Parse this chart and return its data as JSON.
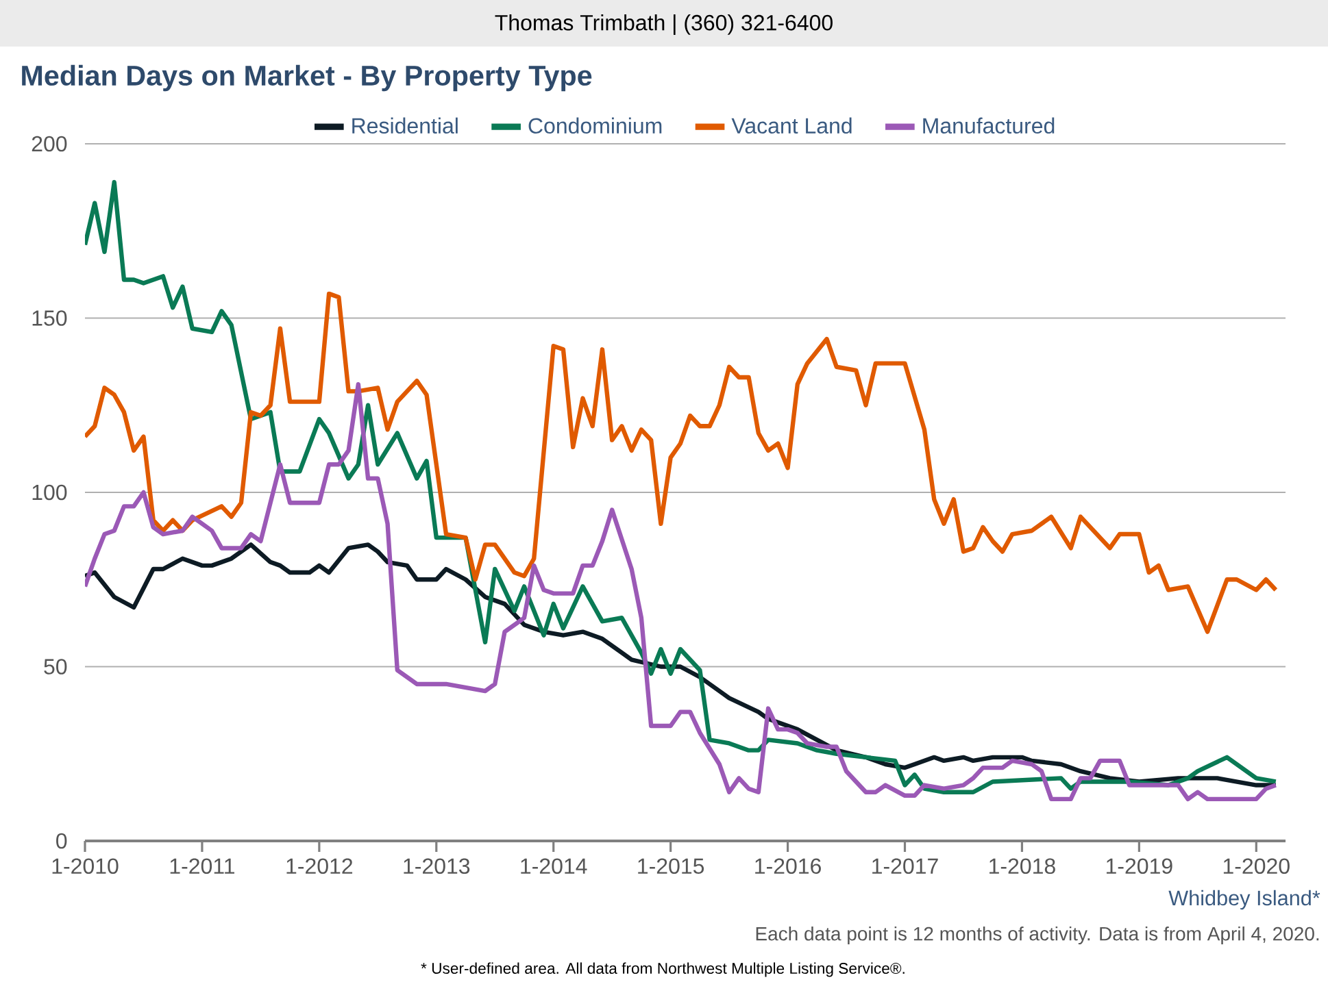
{
  "chart_data": {
    "type": "line",
    "title": "Median Days on Market - By Property Type",
    "annotations": [
      "Thomas Trimbath | (360) 321-6400",
      "Whidbey Island*",
      "Each data point is 12 months of activity. Data is from April 4, 2020.",
      "* User-defined area. All data from Northwest Multiple Listing Service®."
    ],
    "xlim": [
      "2010-01",
      "2020-04"
    ],
    "xticks": [
      {
        "value": "2010-01",
        "label": "1-2010"
      },
      {
        "value": "2011-01",
        "label": "1-2011"
      },
      {
        "value": "2012-01",
        "label": "1-2012"
      },
      {
        "value": "2013-01",
        "label": "1-2013"
      },
      {
        "value": "2014-01",
        "label": "1-2014"
      },
      {
        "value": "2015-01",
        "label": "1-2015"
      },
      {
        "value": "2016-01",
        "label": "1-2016"
      },
      {
        "value": "2017-01",
        "label": "1-2017"
      },
      {
        "value": "2018-01",
        "label": "1-2018"
      },
      {
        "value": "2019-01",
        "label": "1-2019"
      },
      {
        "value": "2020-01",
        "label": "1-2020"
      }
    ],
    "ylim": [
      0,
      200
    ],
    "yticks": [
      0,
      50,
      100,
      150,
      200
    ],
    "grid": "y",
    "legend": "top",
    "marker": "none",
    "line_style": "solid",
    "series": [
      {
        "name": "Residential",
        "color": "#0d1b24",
        "x": [
          "2010-01",
          "2010-02",
          "2010-04",
          "2010-06",
          "2010-08",
          "2010-09",
          "2010-11",
          "2011-01",
          "2011-02",
          "2011-04",
          "2011-06",
          "2011-08",
          "2011-09",
          "2011-10",
          "2011-12",
          "2012-01",
          "2012-02",
          "2012-04",
          "2012-06",
          "2012-07",
          "2012-08",
          "2012-10",
          "2012-11",
          "2013-01",
          "2013-02",
          "2013-04",
          "2013-06",
          "2013-08",
          "2013-10",
          "2013-12",
          "2014-02",
          "2014-04",
          "2014-06",
          "2014-08",
          "2014-09",
          "2014-12",
          "2015-02",
          "2015-04",
          "2015-07",
          "2015-10",
          "2015-11",
          "2016-02",
          "2016-04",
          "2016-06",
          "2016-09",
          "2016-11",
          "2017-01",
          "2017-02",
          "2017-04",
          "2017-05",
          "2017-07",
          "2017-08",
          "2017-10",
          "2018-01",
          "2018-02",
          "2018-05",
          "2018-07",
          "2018-10",
          "2019-01",
          "2019-05",
          "2019-09",
          "2020-01",
          "2020-03"
        ],
        "values": [
          76,
          77,
          70,
          67,
          78,
          78,
          81,
          79,
          79,
          81,
          85,
          80,
          79,
          77,
          77,
          79,
          77,
          84,
          85,
          83,
          80,
          79,
          75,
          75,
          78,
          75,
          70,
          68,
          62,
          60,
          59,
          60,
          58,
          54,
          52,
          50,
          50,
          47,
          41,
          37,
          35,
          32,
          29,
          26,
          24,
          22,
          21,
          22,
          24,
          23,
          24,
          23,
          24,
          24,
          23,
          22,
          20,
          18,
          17,
          18,
          18,
          16,
          16
        ]
      },
      {
        "name": "Condominium",
        "color": "#0a7a55",
        "x": [
          "2010-01",
          "2010-02",
          "2010-03",
          "2010-04",
          "2010-05",
          "2010-06",
          "2010-07",
          "2010-09",
          "2010-10",
          "2010-11",
          "2010-12",
          "2011-02",
          "2011-03",
          "2011-04",
          "2011-06",
          "2011-07",
          "2011-08",
          "2011-09",
          "2011-11",
          "2012-01",
          "2012-02",
          "2012-04",
          "2012-05",
          "2012-06",
          "2012-07",
          "2012-09",
          "2012-11",
          "2012-12",
          "2013-01",
          "2013-04",
          "2013-05",
          "2013-06",
          "2013-07",
          "2013-09",
          "2013-10",
          "2013-12",
          "2014-01",
          "2014-02",
          "2014-04",
          "2014-06",
          "2014-08",
          "2014-10",
          "2014-11",
          "2014-12",
          "2015-01",
          "2015-02",
          "2015-04",
          "2015-05",
          "2015-07",
          "2015-09",
          "2015-10",
          "2015-11",
          "2016-02",
          "2016-04",
          "2016-06",
          "2016-09",
          "2016-12",
          "2017-01",
          "2017-02",
          "2017-03",
          "2017-05",
          "2017-08",
          "2017-10",
          "2018-05",
          "2018-06",
          "2018-07",
          "2018-12",
          "2019-04",
          "2019-06",
          "2019-07",
          "2019-10",
          "2020-01",
          "2020-03"
        ],
        "values": [
          171,
          183,
          169,
          189,
          161,
          161,
          160,
          162,
          153,
          159,
          147,
          146,
          152,
          148,
          121,
          122,
          123,
          106,
          106,
          121,
          117,
          104,
          108,
          125,
          108,
          117,
          104,
          109,
          87,
          87,
          72,
          57,
          78,
          66,
          73,
          59,
          68,
          61,
          73,
          63,
          64,
          54,
          48,
          55,
          48,
          55,
          49,
          29,
          28,
          26,
          26,
          29,
          28,
          26,
          25,
          24,
          23,
          16,
          19,
          15,
          14,
          14,
          17,
          18,
          15,
          17,
          17,
          16,
          18,
          20,
          24,
          18,
          17
        ]
      },
      {
        "name": "Vacant Land",
        "color": "#e05a00",
        "x": [
          "2010-01",
          "2010-02",
          "2010-03",
          "2010-04",
          "2010-05",
          "2010-06",
          "2010-07",
          "2010-08",
          "2010-09",
          "2010-10",
          "2010-11",
          "2010-12",
          "2011-03",
          "2011-04",
          "2011-05",
          "2011-06",
          "2011-07",
          "2011-08",
          "2011-09",
          "2011-10",
          "2011-11",
          "2011-12",
          "2012-01",
          "2012-02",
          "2012-03",
          "2012-04",
          "2012-05",
          "2012-07",
          "2012-08",
          "2012-09",
          "2012-11",
          "2012-12",
          "2013-02",
          "2013-04",
          "2013-05",
          "2013-06",
          "2013-07",
          "2013-09",
          "2013-10",
          "2013-11",
          "2014-01",
          "2014-02",
          "2014-03",
          "2014-04",
          "2014-05",
          "2014-06",
          "2014-07",
          "2014-08",
          "2014-09",
          "2014-10",
          "2014-11",
          "2014-12",
          "2015-01",
          "2015-02",
          "2015-03",
          "2015-04",
          "2015-05",
          "2015-06",
          "2015-07",
          "2015-08",
          "2015-09",
          "2015-10",
          "2015-11",
          "2015-12",
          "2016-01",
          "2016-02",
          "2016-03",
          "2016-05",
          "2016-06",
          "2016-08",
          "2016-09",
          "2016-10",
          "2017-01",
          "2017-03",
          "2017-04",
          "2017-05",
          "2017-06",
          "2017-07",
          "2017-08",
          "2017-09",
          "2017-10",
          "2017-11",
          "2017-12",
          "2018-02",
          "2018-04",
          "2018-06",
          "2018-07",
          "2018-10",
          "2018-11",
          "2019-01",
          "2019-02",
          "2019-03",
          "2019-04",
          "2019-06",
          "2019-08",
          "2019-10",
          "2019-11",
          "2020-01",
          "2020-02",
          "2020-03"
        ],
        "values": [
          116,
          119,
          130,
          128,
          123,
          112,
          116,
          92,
          89,
          92,
          89,
          92,
          96,
          93,
          97,
          123,
          122,
          125,
          147,
          126,
          126,
          126,
          126,
          157,
          156,
          129,
          129,
          130,
          118,
          126,
          132,
          128,
          88,
          87,
          75,
          85,
          85,
          77,
          76,
          81,
          142,
          141,
          113,
          127,
          119,
          141,
          115,
          119,
          112,
          118,
          115,
          91,
          110,
          114,
          122,
          119,
          119,
          125,
          136,
          133,
          133,
          117,
          112,
          114,
          107,
          131,
          137,
          144,
          136,
          135,
          125,
          137,
          137,
          118,
          98,
          91,
          98,
          83,
          84,
          90,
          86,
          83,
          88,
          89,
          93,
          84,
          93,
          84,
          88,
          88,
          77,
          79,
          72,
          73,
          60,
          75,
          75,
          72,
          75,
          72
        ]
      },
      {
        "name": "Manufactured",
        "color": "#9b59b6",
        "x": [
          "2010-01",
          "2010-02",
          "2010-03",
          "2010-04",
          "2010-05",
          "2010-06",
          "2010-07",
          "2010-08",
          "2010-09",
          "2010-11",
          "2010-12",
          "2011-02",
          "2011-03",
          "2011-05",
          "2011-06",
          "2011-07",
          "2011-08",
          "2011-09",
          "2011-10",
          "2012-01",
          "2012-02",
          "2012-03",
          "2012-04",
          "2012-05",
          "2012-06",
          "2012-07",
          "2012-08",
          "2012-09",
          "2012-11",
          "2013-02",
          "2013-04",
          "2013-06",
          "2013-07",
          "2013-08",
          "2013-10",
          "2013-11",
          "2013-12",
          "2014-01",
          "2014-03",
          "2014-04",
          "2014-05",
          "2014-06",
          "2014-07",
          "2014-09",
          "2014-10",
          "2014-11",
          "2015-01",
          "2015-02",
          "2015-03",
          "2015-04",
          "2015-06",
          "2015-07",
          "2015-08",
          "2015-09",
          "2015-10",
          "2015-11",
          "2015-12",
          "2016-01",
          "2016-02",
          "2016-03",
          "2016-05",
          "2016-06",
          "2016-07",
          "2016-09",
          "2016-10",
          "2016-11",
          "2017-01",
          "2017-02",
          "2017-03",
          "2017-05",
          "2017-07",
          "2017-08",
          "2017-09",
          "2017-11",
          "2017-12",
          "2018-02",
          "2018-03",
          "2018-04",
          "2018-06",
          "2018-07",
          "2018-08",
          "2018-09",
          "2018-11",
          "2018-12",
          "2019-05",
          "2019-06",
          "2019-07",
          "2019-08",
          "2019-10",
          "2020-01",
          "2020-02",
          "2020-03"
        ],
        "values": [
          73,
          81,
          88,
          89,
          96,
          96,
          100,
          90,
          88,
          89,
          93,
          89,
          84,
          84,
          88,
          86,
          97,
          108,
          97,
          97,
          108,
          108,
          112,
          131,
          104,
          104,
          91,
          49,
          45,
          45,
          44,
          43,
          45,
          60,
          64,
          79,
          72,
          71,
          71,
          79,
          79,
          86,
          95,
          78,
          64,
          33,
          33,
          37,
          37,
          31,
          22,
          14,
          18,
          15,
          14,
          38,
          32,
          32,
          31,
          28,
          27,
          27,
          20,
          14,
          14,
          16,
          13,
          13,
          16,
          15,
          16,
          18,
          21,
          21,
          23,
          22,
          20,
          12,
          12,
          18,
          18,
          23,
          23,
          16,
          16,
          12,
          14,
          12,
          12,
          12,
          15,
          16
        ]
      }
    ]
  }
}
